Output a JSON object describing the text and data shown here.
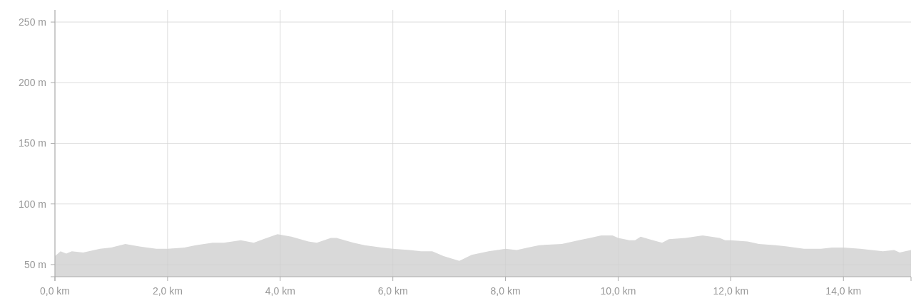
{
  "chart_data": {
    "type": "area",
    "x": [
      0,
      0.1,
      0.2,
      0.3,
      0.5,
      0.8,
      1.0,
      1.25,
      1.5,
      1.8,
      2.0,
      2.3,
      2.5,
      2.8,
      3.0,
      3.3,
      3.53,
      3.7,
      3.95,
      4.2,
      4.5,
      4.65,
      4.9,
      5.0,
      5.3,
      5.5,
      5.8,
      6.0,
      6.3,
      6.5,
      6.7,
      6.9,
      7.18,
      7.4,
      7.7,
      8.0,
      8.2,
      8.4,
      8.6,
      9.0,
      9.3,
      9.5,
      9.7,
      9.9,
      10.0,
      10.2,
      10.3,
      10.4,
      10.55,
      10.78,
      10.9,
      11.2,
      11.5,
      11.8,
      11.9,
      12.0,
      12.3,
      12.5,
      12.8,
      13.0,
      13.3,
      13.6,
      13.8,
      14.0,
      14.3,
      14.5,
      14.7,
      14.9,
      15.0,
      15.2
    ],
    "series": [
      {
        "color": "#d9d9d9",
        "values": [
          57,
          61,
          59,
          61,
          60,
          63,
          64,
          67,
          65,
          63,
          63,
          64,
          66,
          68,
          68,
          70,
          68,
          71,
          75,
          73,
          69,
          68,
          72,
          72,
          68,
          66,
          64,
          63,
          62,
          61,
          61,
          57,
          53,
          58,
          61,
          63,
          62,
          64,
          66,
          67,
          70,
          72,
          74,
          74,
          72,
          70,
          70,
          73,
          71,
          68,
          71,
          72,
          74,
          72,
          70,
          70,
          69,
          67,
          66,
          65,
          63,
          63,
          64,
          64,
          63,
          62,
          61,
          62,
          60,
          62
        ]
      }
    ],
    "xlim": [
      0,
      15.2
    ],
    "ylim": [
      40,
      260
    ],
    "xticks": [
      {
        "value": 0,
        "label": "0,0 km"
      },
      {
        "value": 2,
        "label": "2,0 km"
      },
      {
        "value": 4,
        "label": "4,0 km"
      },
      {
        "value": 6,
        "label": "6,0 km"
      },
      {
        "value": 8,
        "label": "8,0 km"
      },
      {
        "value": 10,
        "label": "10,0 km"
      },
      {
        "value": 12,
        "label": "12,0 km"
      },
      {
        "value": 14,
        "label": "14,0 km"
      }
    ],
    "yticks": [
      {
        "value": 50,
        "label": "50 m"
      },
      {
        "value": 100,
        "label": "100 m"
      },
      {
        "value": 150,
        "label": "150 m"
      },
      {
        "value": 200,
        "label": "200 m"
      },
      {
        "value": 250,
        "label": "250 m"
      }
    ],
    "grid": true
  }
}
